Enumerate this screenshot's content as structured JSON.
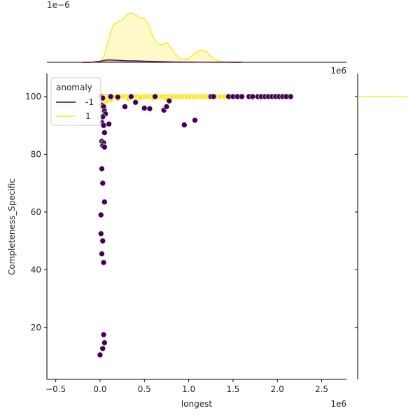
{
  "chart_data": {
    "type": "scatter",
    "title": "",
    "xlabel": "longest",
    "ylabel": "Completeness_Specific",
    "x_offset_text": "1e6",
    "top_marginal_offset_text": "1e−6",
    "right_marginal_offset_text": "1e6",
    "xlim": [
      -0.6,
      2.78
    ],
    "ylim": [
      2,
      108
    ],
    "x_ticks": [
      -0.5,
      0.0,
      0.5,
      1.0,
      1.5,
      2.0,
      2.5
    ],
    "x_tick_labels": [
      "−0.5",
      "0.0",
      "0.5",
      "1.0",
      "1.5",
      "2.0",
      "2.5"
    ],
    "y_ticks": [
      20,
      40,
      60,
      80,
      100
    ],
    "y_tick_labels": [
      "20",
      "40",
      "60",
      "80",
      "100"
    ],
    "grid": false,
    "legend": {
      "title": "anomaly",
      "placement": "upper-left",
      "entries": [
        {
          "label": "-1",
          "color": "#440154"
        },
        {
          "label": "1",
          "color": "#fde725"
        }
      ]
    },
    "series": [
      {
        "name": "1",
        "color": "#fde725",
        "points": [
          [
            0.02,
            100
          ],
          [
            0.06,
            100
          ],
          [
            0.1,
            100
          ],
          [
            0.14,
            100
          ],
          [
            0.18,
            100
          ],
          [
            0.22,
            100
          ],
          [
            0.26,
            100
          ],
          [
            0.3,
            100
          ],
          [
            0.34,
            100
          ],
          [
            0.38,
            100
          ],
          [
            0.42,
            100
          ],
          [
            0.46,
            100
          ],
          [
            0.5,
            100
          ],
          [
            0.54,
            100
          ],
          [
            0.58,
            100
          ],
          [
            0.62,
            100
          ],
          [
            0.66,
            100
          ],
          [
            0.7,
            100
          ],
          [
            0.74,
            100
          ],
          [
            0.78,
            100
          ],
          [
            0.82,
            100
          ],
          [
            0.86,
            100
          ],
          [
            0.9,
            100
          ],
          [
            0.94,
            100
          ],
          [
            0.98,
            100
          ],
          [
            1.02,
            100
          ],
          [
            1.06,
            100
          ],
          [
            1.1,
            100
          ],
          [
            1.14,
            100
          ],
          [
            1.18,
            100
          ],
          [
            1.22,
            100
          ],
          [
            1.26,
            100
          ],
          [
            1.3,
            100
          ],
          [
            1.35,
            100
          ],
          [
            1.4,
            100
          ],
          [
            1.47,
            100
          ],
          [
            0.03,
            99.5
          ],
          [
            0.05,
            98.8
          ],
          [
            0.08,
            98.5
          ],
          [
            0.12,
            98.9
          ],
          [
            0.2,
            99.2
          ],
          [
            0.32,
            99.3
          ],
          [
            0.45,
            99.6
          ],
          [
            0.6,
            99.4
          ],
          [
            0.75,
            99.2
          ],
          [
            0.04,
            97.8
          ]
        ]
      },
      {
        "name": "-1",
        "color": "#440154",
        "points": [
          [
            0.01,
            100
          ],
          [
            0.03,
            99.5
          ],
          [
            0.02,
            97
          ],
          [
            0.04,
            96.5
          ],
          [
            0.05,
            95
          ],
          [
            0.06,
            94
          ],
          [
            0.03,
            93
          ],
          [
            0.02,
            91
          ],
          [
            0.04,
            90
          ],
          [
            0.05,
            87.5
          ],
          [
            0.02,
            84.5
          ],
          [
            0.04,
            84
          ],
          [
            0.03,
            83
          ],
          [
            0.05,
            82.5
          ],
          [
            0.02,
            75
          ],
          [
            0.03,
            70
          ],
          [
            0.05,
            63.5
          ],
          [
            0.01,
            59
          ],
          [
            0.01,
            52.5
          ],
          [
            0.03,
            50
          ],
          [
            0.02,
            45.5
          ],
          [
            0.04,
            42.5
          ],
          [
            0.04,
            17.5
          ],
          [
            0.05,
            14.7
          ],
          [
            0.03,
            12.7
          ],
          [
            0.0,
            10.5
          ],
          [
            0.1,
            90.5
          ],
          [
            0.28,
            96.5
          ],
          [
            0.4,
            98
          ],
          [
            0.5,
            96
          ],
          [
            0.56,
            95.8
          ],
          [
            0.72,
            95.3
          ],
          [
            0.75,
            96.5
          ],
          [
            0.78,
            98.5
          ],
          [
            0.95,
            90.2
          ],
          [
            1.07,
            91.8
          ],
          [
            1.25,
            100
          ],
          [
            1.28,
            100
          ],
          [
            1.45,
            100
          ],
          [
            1.5,
            100
          ],
          [
            1.55,
            100
          ],
          [
            1.6,
            100
          ],
          [
            1.68,
            100
          ],
          [
            1.72,
            100
          ],
          [
            1.78,
            100
          ],
          [
            1.82,
            100
          ],
          [
            1.86,
            100
          ],
          [
            1.9,
            100
          ],
          [
            1.94,
            100
          ],
          [
            1.98,
            100
          ],
          [
            2.02,
            100
          ],
          [
            2.06,
            100
          ],
          [
            2.1,
            100
          ],
          [
            2.15,
            100
          ],
          [
            0.12,
            100
          ],
          [
            0.2,
            99.8
          ],
          [
            0.35,
            100
          ],
          [
            0.62,
            100
          ]
        ]
      }
    ],
    "top_marginal_kde": {
      "x": [
        -0.2,
        -0.1,
        0.0,
        0.05,
        0.1,
        0.15,
        0.2,
        0.25,
        0.3,
        0.35,
        0.4,
        0.45,
        0.5,
        0.55,
        0.6,
        0.65,
        0.7,
        0.75,
        0.8,
        0.85,
        0.9,
        0.95,
        1.0,
        1.05,
        1.1,
        1.15,
        1.2,
        1.25,
        1.3,
        1.35,
        1.4,
        1.5,
        1.6
      ],
      "density_1": [
        0,
        0,
        0.02,
        0.15,
        0.5,
        0.75,
        0.82,
        0.85,
        0.95,
        1.0,
        0.95,
        0.9,
        0.88,
        0.75,
        0.5,
        0.38,
        0.35,
        0.4,
        0.3,
        0.15,
        0.08,
        0.06,
        0.08,
        0.15,
        0.22,
        0.24,
        0.22,
        0.12,
        0.05,
        0.02,
        0.01,
        0,
        0
      ],
      "density_neg1": [
        0,
        0,
        0.02,
        0.04,
        0.05,
        0.045,
        0.04,
        0.035,
        0.03,
        0.03,
        0.028,
        0.025,
        0.022,
        0.02,
        0.018,
        0.015,
        0.012,
        0.01,
        0.008,
        0.006,
        0.005,
        0.004,
        0.004,
        0.004,
        0.003,
        0.003,
        0.003,
        0.002,
        0.002,
        0.001,
        0.001,
        0,
        0
      ]
    },
    "right_marginal": {
      "y_peak": 100,
      "color": "#fde725"
    }
  }
}
